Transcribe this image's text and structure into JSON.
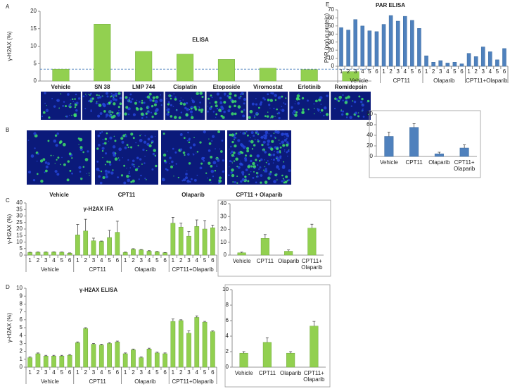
{
  "chart_data": [
    {
      "type": "bar",
      "label": "A",
      "title": "ELISA",
      "y_label": "γ-H2AX (%)",
      "color": "#92d050",
      "categories": [
        "Vehicle",
        "SN 38",
        "LMP 744",
        "Cisplatin",
        "Etoposide",
        "Viromostat",
        "Erlotinib",
        "Romidepsin"
      ],
      "values": [
        3.4,
        16.3,
        8.5,
        7.7,
        6.2,
        3.7,
        3.3,
        2.7
      ],
      "reference_line": 3.4,
      "ylim": [
        0,
        20
      ],
      "yticks": [
        0,
        5,
        10,
        15,
        20
      ]
    },
    {
      "type": "images",
      "label": "B",
      "captions": [
        "Vehicle",
        "CPT11",
        "Olaparib",
        "CPT11 + Olaparib"
      ]
    },
    {
      "type": "bar",
      "label": "C",
      "title": "γ-H2AX IFA",
      "y_label": "γ-H2AX (%)",
      "color": "#92d050",
      "groups": [
        "Vehicle",
        "CPT11",
        "Olaparib",
        "CPT11+Olaparib"
      ],
      "categories": [
        "1",
        "2",
        "3",
        "4",
        "5",
        "6",
        "1",
        "2",
        "3",
        "4",
        "5",
        "6",
        "1",
        "2",
        "3",
        "4",
        "5",
        "6",
        "1",
        "2",
        "3",
        "4",
        "5",
        "6"
      ],
      "values": [
        2,
        2.2,
        2.2,
        2.3,
        2.2,
        1.5,
        15.5,
        18.5,
        11,
        10.5,
        13.5,
        17.5,
        2,
        4.5,
        4,
        3,
        2.5,
        1.8,
        24.5,
        21.5,
        14.5,
        22,
        20,
        21
      ],
      "errors": [
        0.2,
        0.2,
        0.2,
        0.2,
        0.2,
        0.2,
        8,
        9,
        2,
        0.3,
        5.5,
        8.5,
        0.3,
        0.4,
        0.3,
        0.4,
        0.3,
        0.2,
        4.5,
        3,
        3.5,
        5,
        6.5,
        2
      ],
      "ylim": [
        0,
        40
      ],
      "yticks": [
        0,
        5,
        10,
        15,
        20,
        25,
        30,
        35,
        40
      ]
    },
    {
      "type": "bar",
      "color": "#92d050",
      "categories": [
        "Vehicle",
        "CPT11",
        "Olaparib",
        "CPT11+ Olaparib"
      ],
      "values": [
        1.8,
        13,
        3,
        21
      ],
      "errors": [
        0.5,
        3,
        1,
        3
      ],
      "ylim": [
        0,
        40
      ],
      "yticks": [
        0,
        10,
        20,
        30,
        40
      ]
    },
    {
      "type": "bar",
      "label": "D",
      "title": "γ-H2AX ELISA",
      "y_label": "γ-H2AX (%)",
      "color": "#92d050",
      "groups": [
        "Vehicle",
        "CPT11",
        "Olaparib",
        "CPT11+Olaparib"
      ],
      "categories": [
        "1",
        "2",
        "3",
        "4",
        "5",
        "6",
        "1",
        "2",
        "3",
        "4",
        "5",
        "6",
        "1",
        "2",
        "3",
        "4",
        "5",
        "6",
        "1",
        "2",
        "3",
        "4",
        "5",
        "6"
      ],
      "values": [
        1.2,
        1.7,
        1.4,
        1.4,
        1.4,
        1.5,
        3.1,
        4.9,
        2.9,
        2.8,
        3.0,
        3.2,
        1.7,
        2.2,
        1.2,
        2.3,
        1.8,
        1.7,
        5.8,
        5.9,
        4.3,
        6.3,
        5.7,
        4.5
      ],
      "errors": [
        0.1,
        0.1,
        0.1,
        0.1,
        0.1,
        0.1,
        0.1,
        0.1,
        0.1,
        0.1,
        0.1,
        0.1,
        0.1,
        0.1,
        0.1,
        0.1,
        0.1,
        0.1,
        0.3,
        0.1,
        0.3,
        0.2,
        0.1,
        0.1
      ],
      "ylim": [
        0,
        10
      ],
      "yticks": [
        0,
        1,
        2,
        3,
        4,
        5,
        6,
        7,
        8,
        9,
        10
      ]
    },
    {
      "type": "bar",
      "color": "#92d050",
      "categories": [
        "Vehicle",
        "CPT11",
        "Olaparib",
        "CPT11+ Olaparib"
      ],
      "values": [
        1.8,
        3.2,
        1.8,
        5.3
      ],
      "errors": [
        0.2,
        0.6,
        0.2,
        0.6
      ],
      "ylim": [
        0,
        10
      ],
      "yticks": [
        0,
        2,
        4,
        6,
        8,
        10
      ]
    },
    {
      "type": "bar",
      "label": "E",
      "title": "PAR ELISA",
      "y_label": "PAR (pg/µg protein)",
      "color": "#4f81bd",
      "groups": [
        "Vehicle",
        "CPT11",
        "Olaparib",
        "CPT11+Olaparib"
      ],
      "categories": [
        "1",
        "2",
        "3",
        "4",
        "5",
        "6",
        "1",
        "2",
        "3",
        "4",
        "5",
        "6",
        "1",
        "2",
        "3",
        "4",
        "5",
        "6",
        "1",
        "2",
        "3",
        "4",
        "5",
        "6"
      ],
      "values": [
        48,
        45,
        58,
        50,
        44,
        43,
        52,
        63,
        56,
        62,
        57,
        47,
        13,
        5,
        7,
        4,
        5,
        3,
        16,
        12,
        24,
        18,
        8,
        22
      ],
      "ylim": [
        0,
        70
      ],
      "yticks": [
        0,
        10,
        20,
        30,
        40,
        50,
        60,
        70
      ]
    },
    {
      "type": "bar",
      "color": "#4f81bd",
      "categories": [
        "Vehicle",
        "CPT11",
        "Olaparib",
        "CPT11+ Olaparib"
      ],
      "values": [
        38,
        55,
        5,
        16
      ],
      "errors": [
        8,
        7,
        3,
        6
      ],
      "ylim": [
        0,
        80
      ],
      "yticks": [
        0,
        20,
        40,
        60,
        80
      ]
    }
  ]
}
